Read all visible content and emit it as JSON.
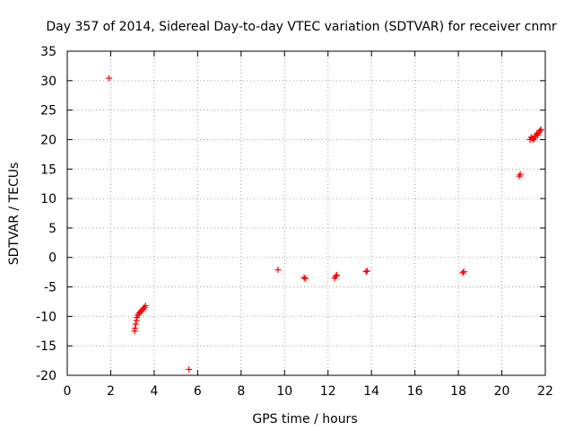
{
  "chart_data": {
    "type": "scatter",
    "title": "Day 357 of 2014, Sidereal Day-to-day VTEC variation (SDTVAR) for receiver cnmr",
    "xlabel": "GPS time / hours",
    "ylabel": "SDTVAR / TECUs",
    "xlim": [
      0,
      22
    ],
    "ylim": [
      -20,
      35
    ],
    "x_ticks": [
      0,
      2,
      4,
      6,
      8,
      10,
      12,
      14,
      16,
      18,
      20,
      22
    ],
    "y_ticks": [
      -20,
      -15,
      -10,
      -5,
      0,
      5,
      10,
      15,
      20,
      25,
      30,
      35
    ],
    "grid": true,
    "marker": "+",
    "series": [
      {
        "name": "cnmr",
        "color": "#ff0000",
        "points": [
          [
            1.92,
            30.4
          ],
          [
            3.1,
            -12.5
          ],
          [
            3.12,
            -12.0
          ],
          [
            3.15,
            -11.3
          ],
          [
            3.18,
            -10.7
          ],
          [
            3.2,
            -10.2
          ],
          [
            3.25,
            -9.8
          ],
          [
            3.3,
            -9.5
          ],
          [
            3.35,
            -9.3
          ],
          [
            3.4,
            -9.1
          ],
          [
            3.45,
            -8.9
          ],
          [
            3.5,
            -8.7
          ],
          [
            3.55,
            -8.5
          ],
          [
            3.6,
            -8.2
          ],
          [
            5.6,
            -19.0
          ],
          [
            9.7,
            -2.1
          ],
          [
            10.9,
            -3.4
          ],
          [
            10.95,
            -3.6
          ],
          [
            12.3,
            -3.5
          ],
          [
            12.35,
            -3.2
          ],
          [
            12.4,
            -3.0
          ],
          [
            13.75,
            -2.4
          ],
          [
            13.8,
            -2.3
          ],
          [
            18.2,
            -2.6
          ],
          [
            18.25,
            -2.4
          ],
          [
            20.8,
            13.8
          ],
          [
            20.85,
            14.1
          ],
          [
            21.3,
            20.0
          ],
          [
            21.35,
            20.4
          ],
          [
            21.4,
            20.2
          ],
          [
            21.45,
            20.0
          ],
          [
            21.5,
            20.3
          ],
          [
            21.55,
            20.6
          ],
          [
            21.6,
            21.0
          ],
          [
            21.65,
            20.8
          ],
          [
            21.7,
            21.2
          ],
          [
            21.75,
            21.5
          ],
          [
            21.8,
            21.7
          ]
        ]
      }
    ]
  }
}
